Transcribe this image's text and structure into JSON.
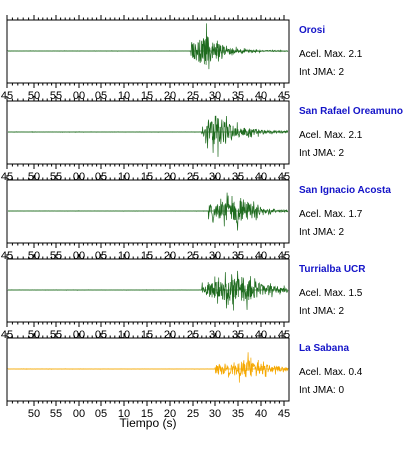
{
  "chart_data": {
    "type": "line",
    "xlabel": "Tiempo (s)",
    "tick_labels": [
      "45",
      "50",
      "55",
      "00",
      "05",
      "10",
      "15",
      "20",
      "25",
      "30",
      "35",
      "40",
      "45"
    ],
    "grid": false,
    "colors": {
      "normal": "#1e6b1e",
      "low": "#f5a800",
      "station_name": "#1414c8"
    },
    "panels": [
      {
        "station": "Orosi",
        "accel_label": "Acel. Max. 2.1",
        "jma_label": "Int JMA: 2",
        "accel_max": 2.1,
        "jma": 2,
        "color": "#1e6b1e",
        "tick_labels_shown": true,
        "onset_s": 79.5,
        "peak_s": 83,
        "end_s": 103,
        "decay_s": 3.5
      },
      {
        "station": "San Rafael Oreamuno",
        "accel_label": "Acel. Max. 2.1",
        "jma_label": "Int JMA: 2",
        "accel_max": 2.1,
        "jma": 2,
        "color": "#1e6b1e",
        "tick_labels_shown": true,
        "onset_s": 82,
        "peak_s": 85,
        "end_s": 108,
        "decay_s": 5
      },
      {
        "station": "San Ignacio Acosta",
        "accel_label": "Acel. Max. 1.7",
        "jma_label": "Int JMA: 2",
        "accel_max": 1.7,
        "jma": 2,
        "color": "#1e6b1e",
        "tick_labels_shown": true,
        "onset_s": 83.5,
        "peak_s": 91,
        "end_s": 108,
        "decay_s": 3
      },
      {
        "station": "Turrialba UCR",
        "accel_label": "Acel. Max. 1.5",
        "jma_label": "Int JMA: 2",
        "accel_max": 1.5,
        "jma": 2,
        "color": "#1e6b1e",
        "tick_labels_shown": true,
        "onset_s": 82,
        "peak_s": 91,
        "end_s": 108,
        "decay_s": 5
      },
      {
        "station": "La Sabana",
        "accel_label": "Acel. Max. 0.4",
        "jma_label": "Int JMA: 0",
        "accel_max": 0.4,
        "jma": 0,
        "color": "#f5a800",
        "tick_labels_shown": true,
        "onset_s": 85,
        "peak_s": 92,
        "end_s": 108,
        "decay_s": 5
      }
    ]
  }
}
